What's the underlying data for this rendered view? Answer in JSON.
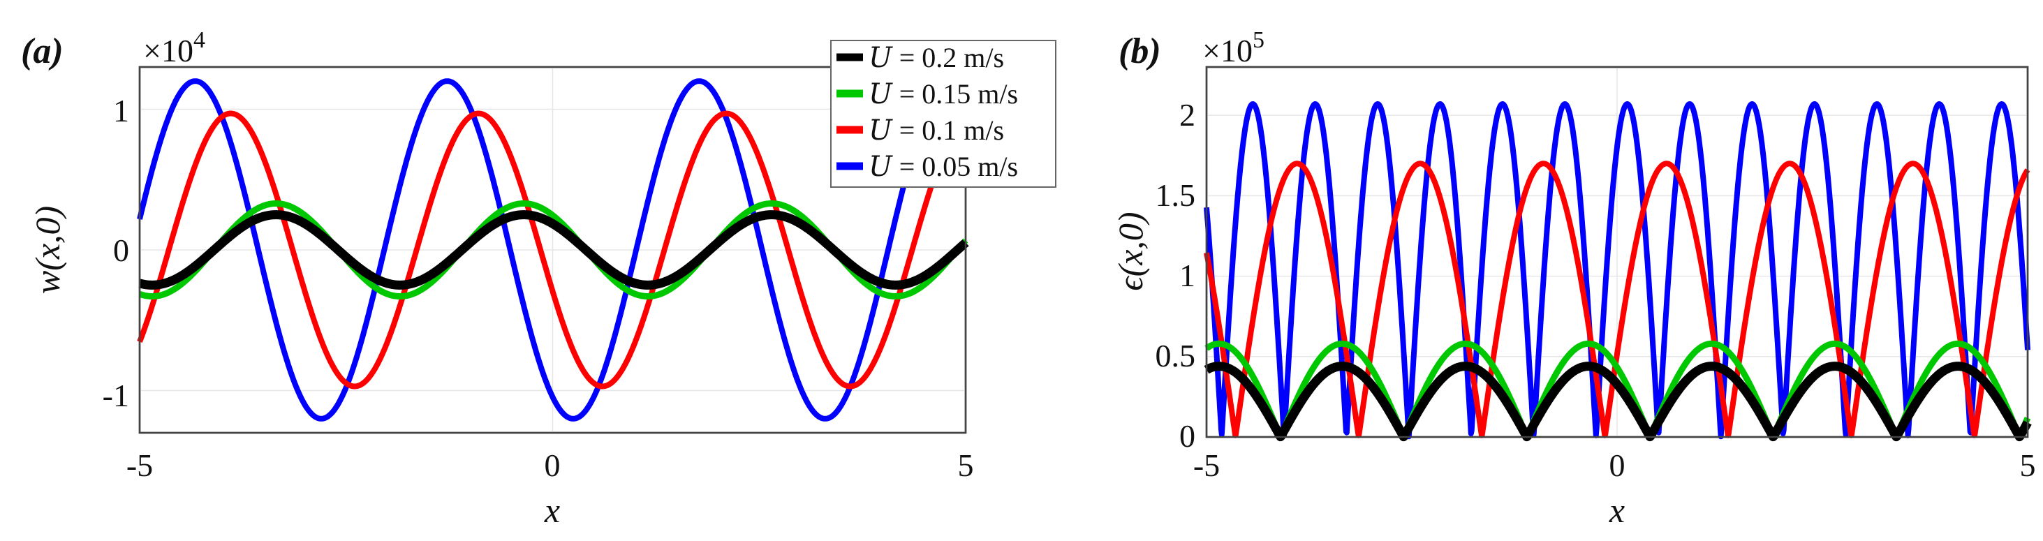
{
  "chart_data": [
    {
      "type": "line",
      "panel_label": "(a)",
      "xlabel": "x",
      "ylabel": "w(x,0)",
      "multiplier": "×10",
      "multiplier_exp": "4",
      "xlim": [
        -5,
        5
      ],
      "ylim": [
        -1.3,
        1.3
      ],
      "xticks": [
        "-5",
        "0",
        "5"
      ],
      "yticks": [
        "-1",
        "0",
        "1"
      ],
      "legend_position": "top-right",
      "series": [
        {
          "name": "U = 0.2 m/s",
          "legend_label": "𝑈 = 0.2 m/s",
          "color": "#000000",
          "amplitude": 0.25,
          "wavelength": 3.0,
          "phase": 2.3
        },
        {
          "name": "U = 0.15 m/s",
          "legend_label": "𝑈 = 0.15 m/s",
          "color": "#00c800",
          "amplitude": 0.33,
          "wavelength": 3.0,
          "phase": 2.3
        },
        {
          "name": "U = 0.1 m/s",
          "legend_label": "𝑈 = 0.1 m/s",
          "color": "#ff0000",
          "amplitude": 0.97,
          "wavelength": 3.0,
          "phase": 3.45
        },
        {
          "name": "U = 0.05 m/s",
          "legend_label": "𝑈 = 0.05 m/s",
          "color": "#0000ff",
          "amplitude": 1.2,
          "wavelength": 3.05,
          "phase": 4.2
        }
      ]
    },
    {
      "type": "line",
      "panel_label": "(b)",
      "xlabel": "x",
      "ylabel": "ϵ(x,0)",
      "multiplier": "×10",
      "multiplier_exp": "5",
      "xlim": [
        -5,
        5
      ],
      "ylim": [
        0,
        2.3
      ],
      "xticks": [
        "-5",
        "0",
        "5"
      ],
      "yticks": [
        "0",
        "0.5",
        "1",
        "1.5",
        "2"
      ],
      "series": [
        {
          "name": "U = 0.2 m/s",
          "color": "#000000",
          "amplitude": 0.44,
          "wavelength": 1.5,
          "phase": 2.3
        },
        {
          "name": "U = 0.15 m/s",
          "color": "#00c800",
          "amplitude": 0.58,
          "wavelength": 1.5,
          "phase": 2.3
        },
        {
          "name": "U = 0.1 m/s",
          "color": "#ff0000",
          "amplitude": 1.7,
          "wavelength": 1.5,
          "phase": 3.45
        },
        {
          "name": "U = 0.05 m/s",
          "color": "#0000ff",
          "amplitude": 2.07,
          "wavelength": 0.76,
          "phase": 4.2
        }
      ]
    }
  ]
}
